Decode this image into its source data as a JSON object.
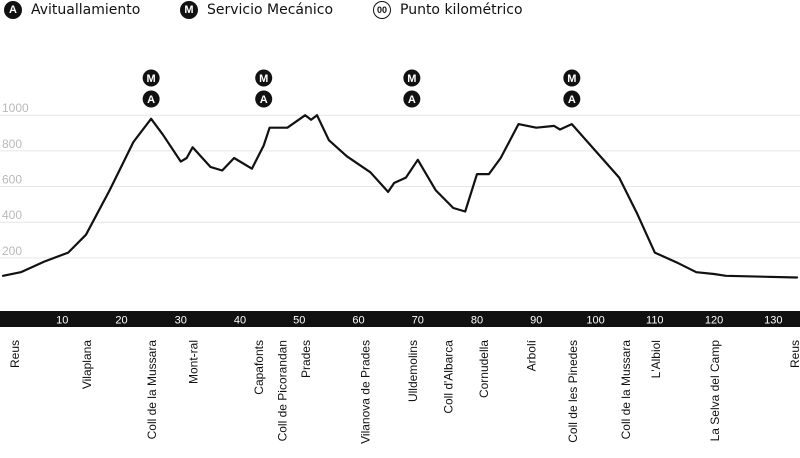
{
  "legend": [
    {
      "badge": "A",
      "label": "Avituallamiento",
      "style": "filled"
    },
    {
      "badge": "M",
      "label": "Servicio Mecánico",
      "style": "filled"
    },
    {
      "badge": "00",
      "label": "Punto kilométrico",
      "style": "outline"
    }
  ],
  "chart_data": {
    "type": "area",
    "title": "",
    "xlabel": "",
    "ylabel": "",
    "xlim": [
      0,
      134
    ],
    "ylim": [
      0,
      1050
    ],
    "grid": true,
    "yticks": [
      200,
      400,
      600,
      800,
      1000
    ],
    "xticks": [
      10,
      20,
      30,
      40,
      50,
      60,
      70,
      80,
      90,
      100,
      110,
      120,
      130
    ],
    "profile": [
      [
        0,
        100
      ],
      [
        3,
        120
      ],
      [
        7,
        180
      ],
      [
        11,
        230
      ],
      [
        14,
        330
      ],
      [
        18,
        580
      ],
      [
        22,
        850
      ],
      [
        25,
        980
      ],
      [
        27,
        890
      ],
      [
        30,
        740
      ],
      [
        31,
        760
      ],
      [
        32,
        820
      ],
      [
        35,
        710
      ],
      [
        37,
        690
      ],
      [
        39,
        760
      ],
      [
        42,
        700
      ],
      [
        44,
        830
      ],
      [
        45,
        930
      ],
      [
        48,
        930
      ],
      [
        51,
        1000
      ],
      [
        52,
        975
      ],
      [
        53,
        1000
      ],
      [
        55,
        860
      ],
      [
        58,
        770
      ],
      [
        62,
        680
      ],
      [
        65,
        570
      ],
      [
        66,
        620
      ],
      [
        68,
        650
      ],
      [
        70,
        750
      ],
      [
        73,
        580
      ],
      [
        76,
        480
      ],
      [
        78,
        460
      ],
      [
        80,
        670
      ],
      [
        82,
        670
      ],
      [
        84,
        760
      ],
      [
        87,
        950
      ],
      [
        90,
        930
      ],
      [
        93,
        940
      ],
      [
        94,
        920
      ],
      [
        96,
        950
      ],
      [
        100,
        800
      ],
      [
        104,
        650
      ],
      [
        107,
        450
      ],
      [
        110,
        230
      ],
      [
        114,
        170
      ],
      [
        117,
        120
      ],
      [
        120,
        110
      ],
      [
        122,
        100
      ],
      [
        134,
        90
      ]
    ],
    "services": [
      {
        "km": 25,
        "badges": [
          "M",
          "A"
        ]
      },
      {
        "km": 44,
        "badges": [
          "M",
          "A"
        ]
      },
      {
        "km": 69,
        "badges": [
          "M",
          "A"
        ]
      },
      {
        "km": 96,
        "badges": [
          "M",
          "A"
        ]
      }
    ],
    "locations": [
      {
        "km": 0,
        "name": "Reus"
      },
      {
        "km": 14,
        "name": "Vilaplana"
      },
      {
        "km": 25,
        "name": "Coll de la Mussara"
      },
      {
        "km": 32,
        "name": "Mont-ral"
      },
      {
        "km": 43,
        "name": "Capafonts"
      },
      {
        "km": 47,
        "name": "Coll de Picorandan"
      },
      {
        "km": 51,
        "name": "Prades"
      },
      {
        "km": 61,
        "name": "Vilanova de Prades"
      },
      {
        "km": 69,
        "name": "Ulldemolins"
      },
      {
        "km": 75,
        "name": "Coll d'Albarca"
      },
      {
        "km": 81,
        "name": "Cornudella"
      },
      {
        "km": 89,
        "name": "Arbolí"
      },
      {
        "km": 96,
        "name": "Coll de les Pinedes"
      },
      {
        "km": 105,
        "name": "Coll de la Mussara"
      },
      {
        "km": 110,
        "name": "L'Albiol"
      },
      {
        "km": 120,
        "name": "La Selva del Camp"
      },
      {
        "km": 134,
        "name": "Reus"
      }
    ]
  }
}
